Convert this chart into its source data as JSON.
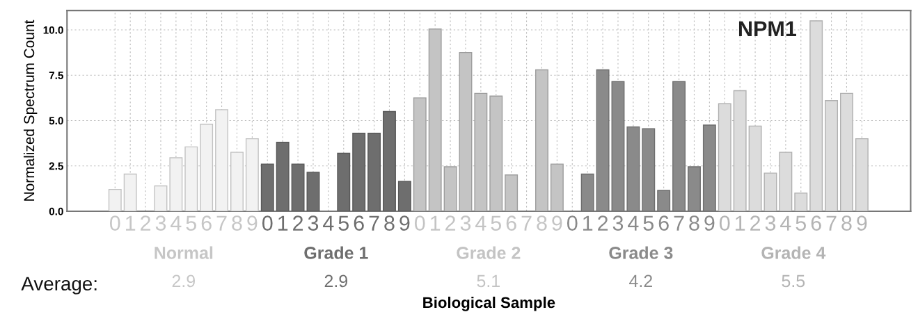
{
  "chart_data": {
    "type": "bar",
    "title": "NPM1",
    "xlabel": "Biological Sample",
    "ylabel": "Normalized Spectrum Count",
    "categories": [
      "0",
      "1",
      "2",
      "3",
      "4",
      "5",
      "6",
      "7",
      "8",
      "9",
      "0",
      "1",
      "2",
      "3",
      "4",
      "5",
      "6",
      "7",
      "8",
      "9",
      "0",
      "1",
      "2",
      "3",
      "4",
      "5",
      "6",
      "7",
      "8",
      "9",
      "0",
      "1",
      "2",
      "3",
      "4",
      "5",
      "6",
      "7",
      "8",
      "9",
      "0",
      "1",
      "2",
      "3",
      "4",
      "5",
      "6",
      "7",
      "8",
      "9"
    ],
    "series": [
      {
        "name": "Normal",
        "color": "#f2f2f2",
        "values": [
          1.2,
          2.05,
          null,
          1.4,
          2.95,
          3.55,
          4.8,
          5.6,
          3.25,
          4.0,
          null,
          null,
          null,
          null,
          null,
          null,
          null,
          null,
          null,
          null,
          null,
          null,
          null,
          null,
          null,
          null,
          null,
          null,
          null,
          null,
          null,
          null,
          null,
          null,
          null,
          null,
          null,
          null,
          null,
          null,
          null,
          null,
          null,
          null,
          null,
          null,
          null,
          null,
          null,
          null
        ]
      },
      {
        "name": "Grade 1",
        "color": "#6e6e6e",
        "values": [
          null,
          null,
          null,
          null,
          null,
          null,
          null,
          null,
          null,
          null,
          2.6,
          3.8,
          2.6,
          2.15,
          null,
          3.2,
          4.3,
          4.3,
          5.5,
          1.65,
          null,
          null,
          null,
          null,
          null,
          null,
          null,
          null,
          null,
          null,
          null,
          null,
          null,
          null,
          null,
          null,
          null,
          null,
          null,
          null,
          null,
          null,
          null,
          null,
          null,
          null,
          null,
          null,
          null,
          null
        ]
      },
      {
        "name": "Grade 2",
        "color": "#c4c4c4",
        "values": [
          null,
          null,
          null,
          null,
          null,
          null,
          null,
          null,
          null,
          null,
          null,
          null,
          null,
          null,
          null,
          null,
          null,
          null,
          null,
          null,
          6.25,
          10.05,
          2.45,
          8.75,
          6.5,
          6.35,
          2.0,
          null,
          7.8,
          2.6,
          null,
          null,
          null,
          null,
          null,
          null,
          null,
          null,
          null,
          null,
          null,
          null,
          null,
          null,
          null,
          null,
          null,
          null,
          null,
          null
        ]
      },
      {
        "name": "Grade 3",
        "color": "#8a8a8a",
        "values": [
          null,
          null,
          null,
          null,
          null,
          null,
          null,
          null,
          null,
          null,
          null,
          null,
          null,
          null,
          null,
          null,
          null,
          null,
          null,
          null,
          null,
          null,
          null,
          null,
          null,
          null,
          null,
          null,
          null,
          null,
          null,
          2.05,
          7.8,
          7.15,
          4.65,
          4.55,
          1.15,
          7.15,
          2.45,
          4.75,
          null,
          null,
          null,
          null,
          null,
          null,
          null,
          null,
          null,
          null
        ]
      },
      {
        "name": "Grade 4",
        "color": "#dcdcdc",
        "values": [
          null,
          null,
          null,
          null,
          null,
          null,
          null,
          null,
          null,
          null,
          null,
          null,
          null,
          null,
          null,
          null,
          null,
          null,
          null,
          null,
          null,
          null,
          null,
          null,
          null,
          null,
          null,
          null,
          null,
          null,
          null,
          null,
          null,
          null,
          null,
          null,
          null,
          null,
          null,
          null,
          5.93,
          6.65,
          4.7,
          2.1,
          3.25,
          1.0,
          10.5,
          6.1,
          6.5,
          4.0
        ]
      }
    ],
    "annotations": [
      "Average:",
      "2.9",
      "2.9",
      "5.1",
      "4.2",
      "5.5"
    ],
    "ylim": [
      0,
      11.07
    ],
    "yticks": [
      {
        "value": 0,
        "label": "0.0"
      },
      {
        "value": 2.5,
        "label": "2.5"
      },
      {
        "value": 5,
        "label": "5.0"
      },
      {
        "value": 7.5,
        "label": "7.5"
      },
      {
        "value": 10,
        "label": "10.0"
      }
    ],
    "grid": true,
    "legend": false
  }
}
